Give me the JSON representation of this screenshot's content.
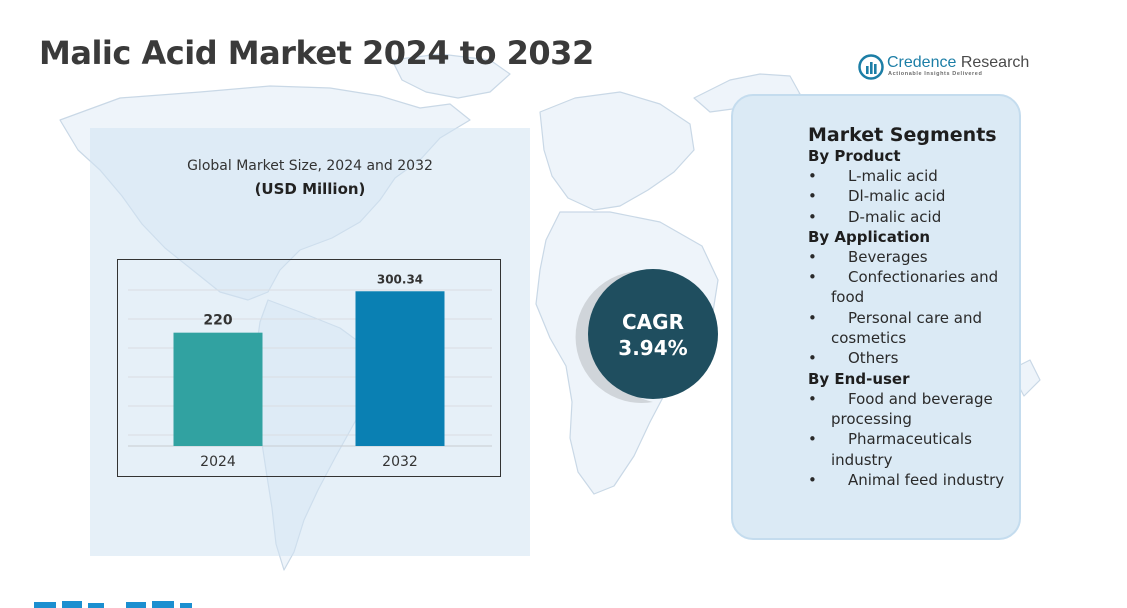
{
  "header": {
    "title": "Malic Acid Market 2024 to 2032"
  },
  "logo": {
    "name_part1": "Credence",
    "name_part2": " Research",
    "tagline": "Actionable Insights Delivered"
  },
  "chart_data": {
    "type": "bar",
    "title": "Global Market Size, 2024 and 2032",
    "unit": "(USD Million)",
    "categories": [
      "2024",
      "2032"
    ],
    "values": [
      220,
      300.34
    ],
    "value_labels": [
      "220",
      "300.34"
    ],
    "colors": [
      "#31a2a1",
      "#0a80b3"
    ],
    "grid": true,
    "legend": "none"
  },
  "cagr": {
    "label": "CAGR",
    "value": "3.94%"
  },
  "segments": {
    "heading": "Market Segments",
    "groups": [
      {
        "title": "By Product",
        "items": [
          "L-malic acid",
          "Dl-malic acid",
          "D-malic acid"
        ]
      },
      {
        "title": "By Application",
        "items": [
          "Beverages",
          "Confectionaries and food",
          "Personal care and cosmetics",
          "Others"
        ]
      },
      {
        "title": "By End-user",
        "items": [
          "Food and beverage processing",
          "Pharmaceuticals industry",
          "Animal feed industry"
        ]
      }
    ]
  },
  "colors": {
    "title_text": "#3a3a3a",
    "chart_panel": "#dfeaf4",
    "cagr_circle": "#1f4e5f",
    "segments_card": "#dbeaf5",
    "logo_blue": "#1c7ea6",
    "footer_strip": "#1b8fd0"
  }
}
